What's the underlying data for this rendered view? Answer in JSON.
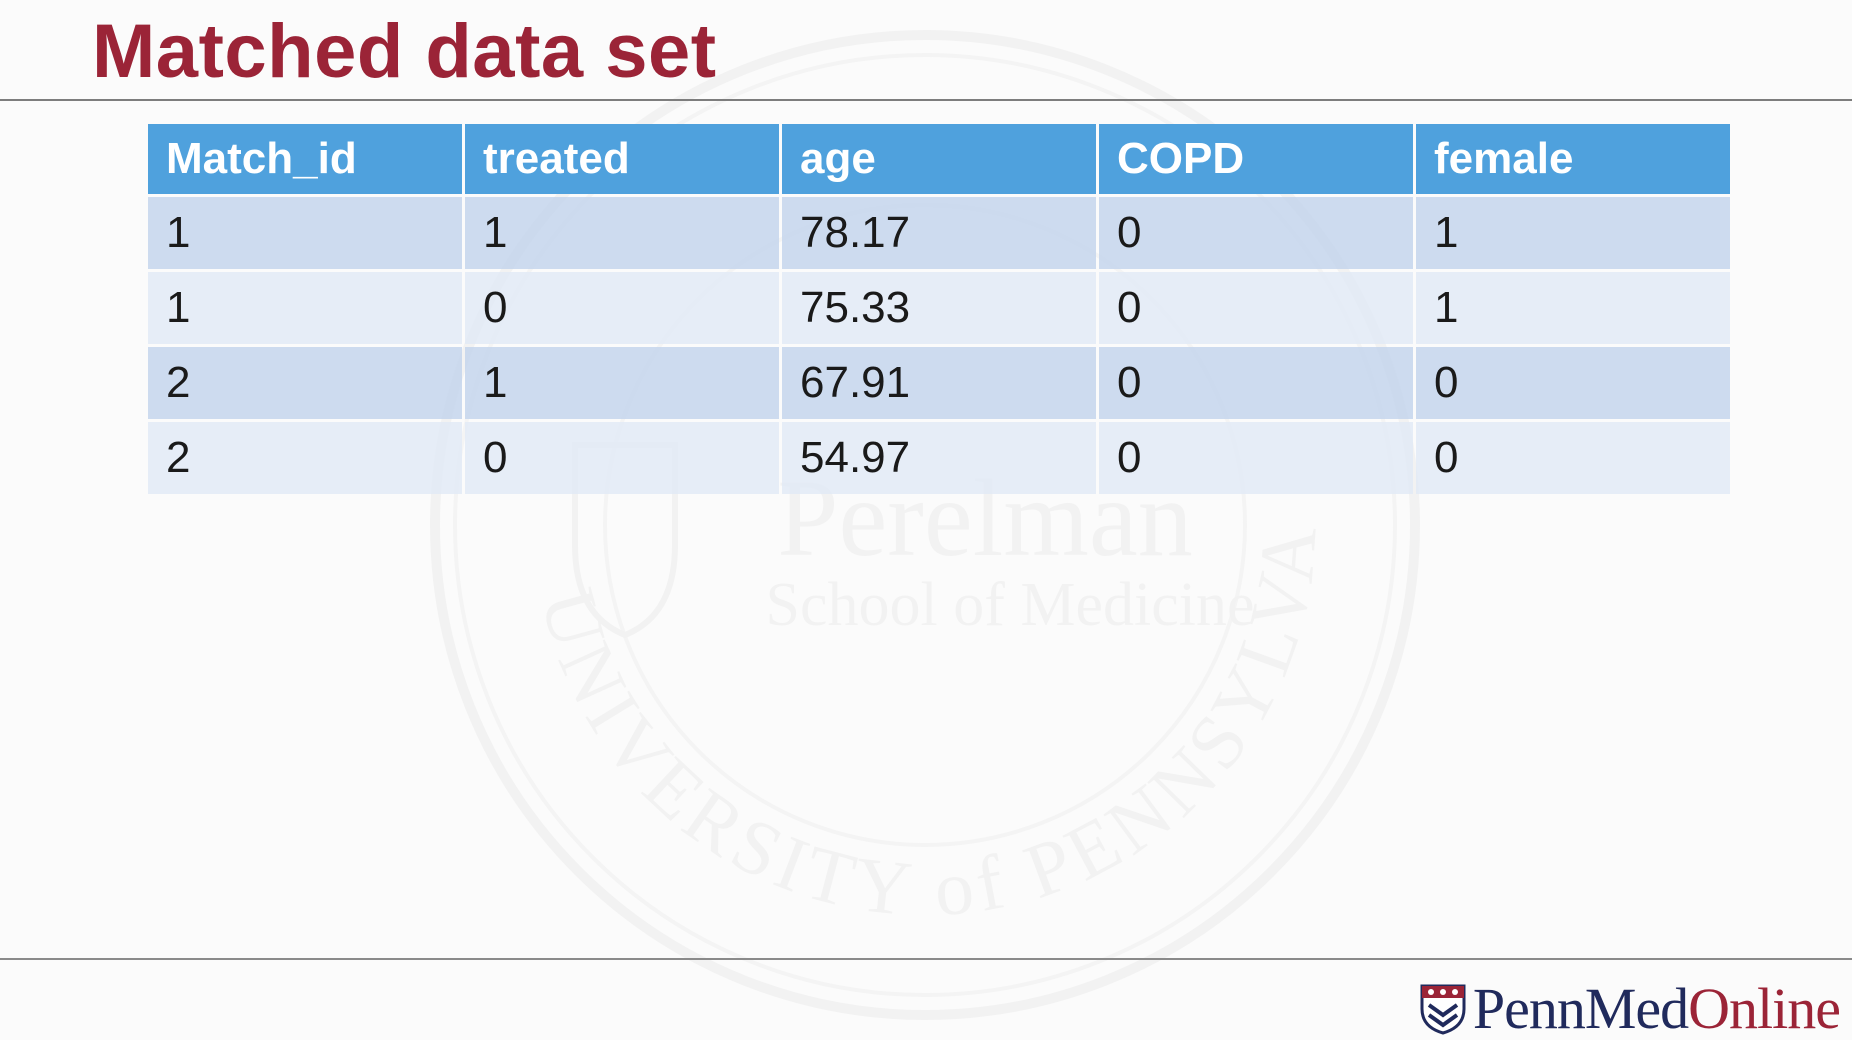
{
  "slide": {
    "title": "Matched data set"
  },
  "table": {
    "headers": [
      "Match_id",
      "treated",
      "age",
      "COPD",
      "female"
    ],
    "rows": [
      [
        "1",
        "1",
        "78.17",
        "0",
        "1"
      ],
      [
        "1",
        "0",
        "75.33",
        "0",
        "1"
      ],
      [
        "2",
        "1",
        "67.91",
        "0",
        "0"
      ],
      [
        "2",
        "0",
        "54.97",
        "0",
        "0"
      ]
    ]
  },
  "watermark": {
    "name_line": "Perelman",
    "school_line": "School of Medicine",
    "ring_text": "UNIVERSITY of PENNSYLVANIA"
  },
  "footer": {
    "brand_penn_med": "PennMed",
    "brand_online": "Online"
  },
  "colors": {
    "title": "#9b2437",
    "header_bg": "#4fa1dd",
    "row_odd": "#c4d5ec",
    "row_even": "#e2eaf6",
    "brand_navy": "#202a5c",
    "brand_red": "#9b2437"
  }
}
